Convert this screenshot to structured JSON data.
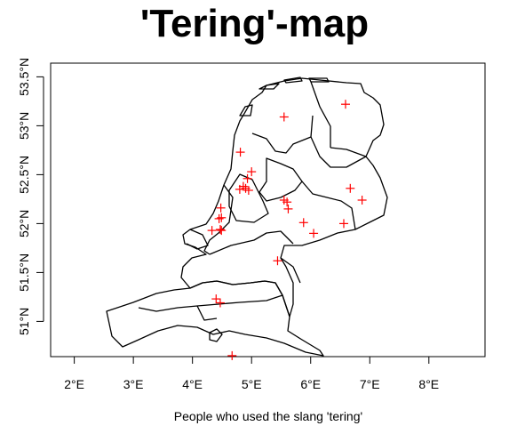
{
  "title": "'Tering'-map",
  "xlabel": "People who used the slang 'tering'",
  "colors": {
    "marker": "#ff0000",
    "border": "#000000",
    "background": "#ffffff"
  },
  "chart_data": {
    "type": "scatter",
    "title": "'Tering'-map",
    "xlabel": "People who used the slang 'tering'",
    "ylabel": "",
    "xlim": [
      1.6,
      8.95
    ],
    "ylim": [
      50.64,
      53.64
    ],
    "x_ticks": [
      {
        "value": 2,
        "label": "2°E"
      },
      {
        "value": 3,
        "label": "3°E"
      },
      {
        "value": 4,
        "label": "4°E"
      },
      {
        "value": 5,
        "label": "5°E"
      },
      {
        "value": 6,
        "label": "6°E"
      },
      {
        "value": 7,
        "label": "7°E"
      },
      {
        "value": 8,
        "label": "8°E"
      }
    ],
    "y_ticks": [
      {
        "value": 51.0,
        "label": "51°N"
      },
      {
        "value": 51.5,
        "label": "51.5°N"
      },
      {
        "value": 52.0,
        "label": "52°N"
      },
      {
        "value": 52.5,
        "label": "52.5°N"
      },
      {
        "value": 53.0,
        "label": "53°N"
      },
      {
        "value": 53.5,
        "label": "53.5°N"
      }
    ],
    "marker": "+",
    "marker_color": "#ff0000",
    "points": [
      {
        "x": 6.59,
        "y": 53.22
      },
      {
        "x": 5.55,
        "y": 53.09
      },
      {
        "x": 4.81,
        "y": 52.73
      },
      {
        "x": 5.0,
        "y": 52.53
      },
      {
        "x": 4.93,
        "y": 52.46
      },
      {
        "x": 4.86,
        "y": 52.38
      },
      {
        "x": 4.9,
        "y": 52.36
      },
      {
        "x": 4.95,
        "y": 52.34
      },
      {
        "x": 4.8,
        "y": 52.35
      },
      {
        "x": 5.55,
        "y": 52.24
      },
      {
        "x": 5.6,
        "y": 52.22
      },
      {
        "x": 5.62,
        "y": 52.15
      },
      {
        "x": 6.67,
        "y": 52.36
      },
      {
        "x": 6.87,
        "y": 52.24
      },
      {
        "x": 4.48,
        "y": 52.16
      },
      {
        "x": 4.45,
        "y": 52.05
      },
      {
        "x": 4.49,
        "y": 52.06
      },
      {
        "x": 4.47,
        "y": 51.94
      },
      {
        "x": 4.49,
        "y": 51.93
      },
      {
        "x": 4.33,
        "y": 51.93
      },
      {
        "x": 5.88,
        "y": 52.01
      },
      {
        "x": 6.05,
        "y": 51.9
      },
      {
        "x": 6.56,
        "y": 52.0
      },
      {
        "x": 5.44,
        "y": 51.62
      },
      {
        "x": 4.4,
        "y": 51.23
      },
      {
        "x": 4.47,
        "y": 51.19
      },
      {
        "x": 4.67,
        "y": 50.65
      }
    ],
    "grid": false,
    "legend": "none"
  }
}
